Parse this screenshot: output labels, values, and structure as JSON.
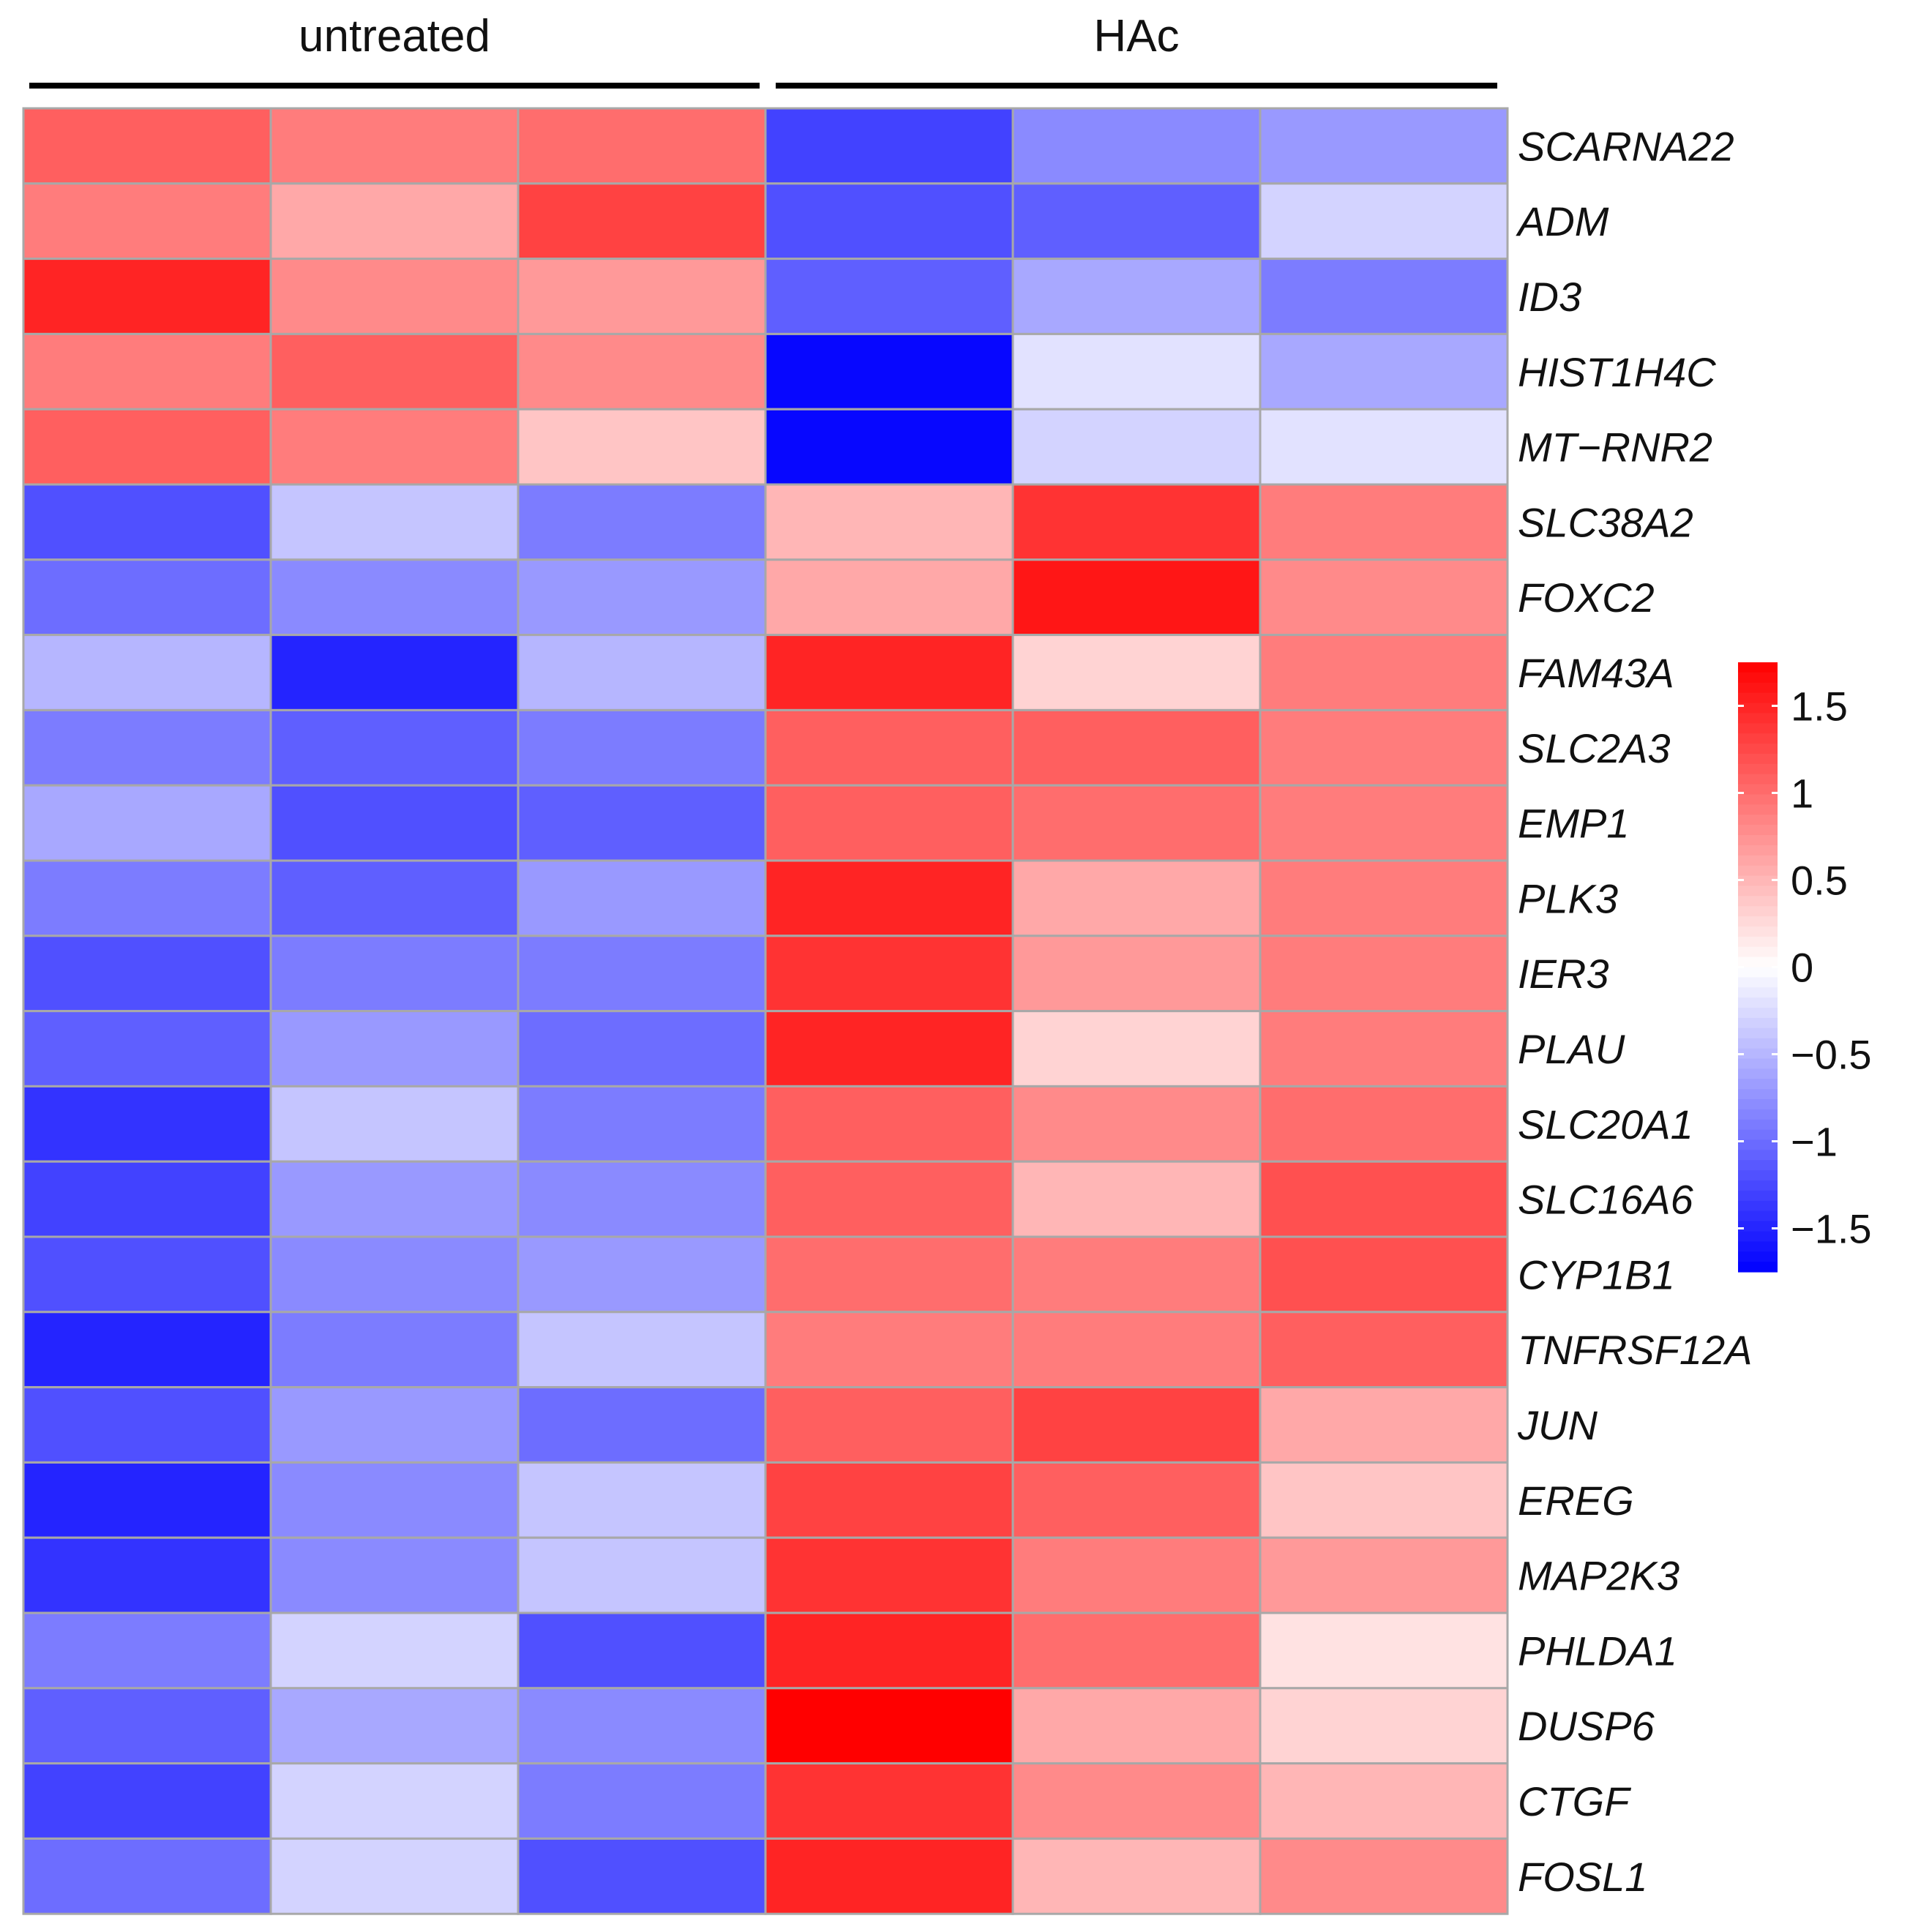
{
  "chart_data": {
    "type": "heatmap",
    "title": "",
    "groups": [
      {
        "label": "untreated",
        "columns": [
          0,
          1,
          2
        ]
      },
      {
        "label": "HAc",
        "columns": [
          3,
          4,
          5
        ]
      }
    ],
    "rows": [
      "SCARNA22",
      "ADM",
      "ID3",
      "HIST1H4C",
      "MT−RNR2",
      "SLC38A2",
      "FOXC2",
      "FAM43A",
      "SLC2A3",
      "EMP1",
      "PLK3",
      "IER3",
      "PLAU",
      "SLC20A1",
      "SLC16A6",
      "CYP1B1",
      "TNFRSF12A",
      "JUN",
      "EREG",
      "MAP2K3",
      "PHLDA1",
      "DUSP6",
      "CTGF",
      "FOSL1"
    ],
    "values": [
      [
        1.1,
        0.9,
        1.0,
        -1.3,
        -0.8,
        -0.7
      ],
      [
        0.9,
        0.6,
        1.3,
        -1.2,
        -1.1,
        -0.3
      ],
      [
        1.5,
        0.8,
        0.7,
        -1.1,
        -0.6,
        -0.9
      ],
      [
        0.9,
        1.1,
        0.8,
        -1.7,
        -0.2,
        -0.6
      ],
      [
        1.1,
        0.9,
        0.4,
        -1.7,
        -0.3,
        -0.2
      ],
      [
        -1.2,
        -0.4,
        -0.9,
        0.5,
        1.4,
        0.9
      ],
      [
        -1.0,
        -0.8,
        -0.7,
        0.6,
        1.6,
        0.8
      ],
      [
        -0.5,
        -1.5,
        -0.5,
        1.5,
        0.3,
        0.9
      ],
      [
        -0.9,
        -1.1,
        -0.9,
        1.1,
        1.1,
        0.9
      ],
      [
        -0.6,
        -1.2,
        -1.1,
        1.1,
        1.0,
        0.9
      ],
      [
        -0.9,
        -1.1,
        -0.7,
        1.5,
        0.6,
        0.9
      ],
      [
        -1.2,
        -0.9,
        -0.9,
        1.4,
        0.7,
        0.9
      ],
      [
        -1.1,
        -0.7,
        -1.0,
        1.5,
        0.3,
        0.9
      ],
      [
        -1.4,
        -0.4,
        -0.9,
        1.1,
        0.8,
        1.0
      ],
      [
        -1.3,
        -0.7,
        -0.8,
        1.1,
        0.5,
        1.2
      ],
      [
        -1.2,
        -0.8,
        -0.7,
        1.0,
        0.9,
        1.2
      ],
      [
        -1.5,
        -0.9,
        -0.4,
        0.9,
        0.9,
        1.1
      ],
      [
        -1.2,
        -0.7,
        -1.0,
        1.1,
        1.3,
        0.6
      ],
      [
        -1.5,
        -0.8,
        -0.4,
        1.3,
        1.1,
        0.4
      ],
      [
        -1.4,
        -0.8,
        -0.4,
        1.4,
        0.9,
        0.7
      ],
      [
        -0.9,
        -0.3,
        -1.2,
        1.5,
        1.0,
        0.2
      ],
      [
        -1.1,
        -0.6,
        -0.8,
        1.8,
        0.6,
        0.3
      ],
      [
        -1.3,
        -0.3,
        -0.9,
        1.4,
        0.8,
        0.5
      ],
      [
        -1.0,
        -0.3,
        -1.2,
        1.5,
        0.5,
        0.8
      ]
    ],
    "legend": {
      "position": "right",
      "min": -1.75,
      "max": 1.75,
      "ticks": [
        1.5,
        1,
        0.5,
        0,
        -0.5,
        -1,
        -1.5
      ],
      "tick_labels": [
        "1.5",
        "1",
        "0.5",
        "0",
        "−0.5",
        "−1",
        "−1.5"
      ],
      "low_color": "#0000ff",
      "mid_color": "#ffffff",
      "high_color": "#ff0000"
    }
  }
}
